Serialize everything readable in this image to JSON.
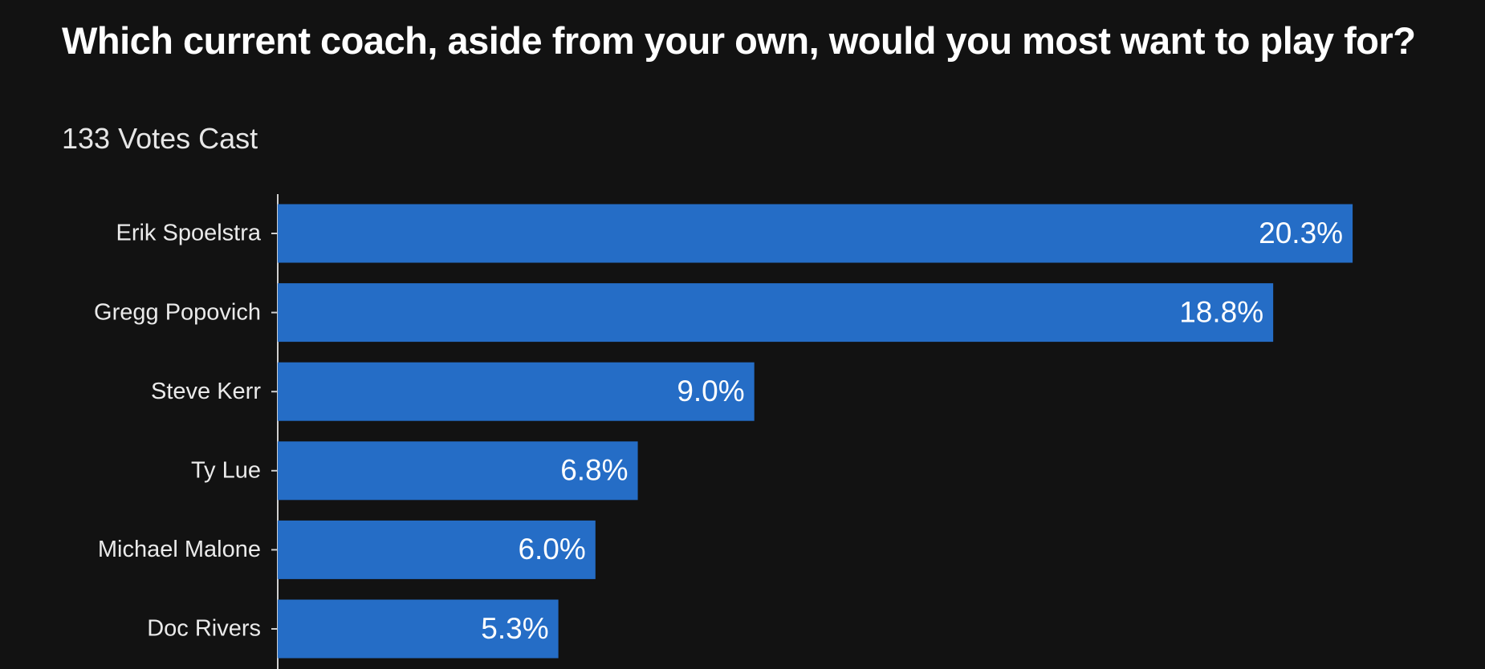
{
  "chart_data": {
    "type": "bar",
    "orientation": "horizontal",
    "title": "Which current coach, aside from your own, would you most want to play for?",
    "subtitle": "133 Votes Cast",
    "categories": [
      "Erik Spoelstra",
      "Gregg Popovich",
      "Steve Kerr",
      "Ty Lue",
      "Michael Malone",
      "Doc Rivers"
    ],
    "values": [
      20.3,
      18.8,
      9.0,
      6.8,
      6.0,
      5.3
    ],
    "value_labels": [
      "20.3%",
      "18.8%",
      "9.0%",
      "6.8%",
      "6.0%",
      "5.3%"
    ],
    "color": "#256dc6",
    "xlim": [
      0,
      22.8
    ]
  }
}
